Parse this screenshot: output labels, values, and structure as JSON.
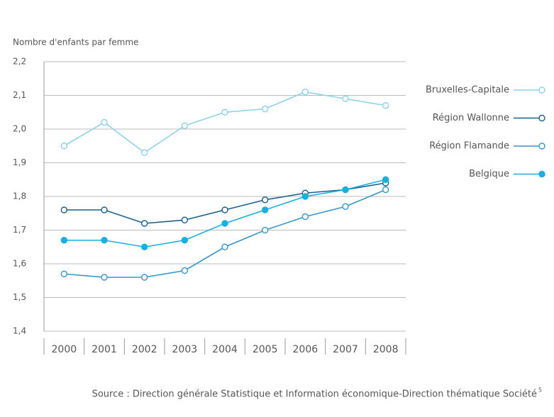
{
  "chart_data": {
    "type": "line",
    "ylabel": "Nombre d'enfants par femme",
    "categories": [
      "2000",
      "2001",
      "2002",
      "2003",
      "2004",
      "2005",
      "2006",
      "2007",
      "2008"
    ],
    "series": [
      {
        "name": "Bruxelles-Capitale",
        "color": "#8ed2ea",
        "marker": "open",
        "values": [
          1.95,
          2.02,
          1.93,
          2.01,
          2.05,
          2.06,
          2.11,
          2.09,
          2.07
        ]
      },
      {
        "name": "Région Wallonne",
        "color": "#1b5f8e",
        "marker": "open",
        "values": [
          1.76,
          1.76,
          1.72,
          1.73,
          1.76,
          1.79,
          1.81,
          1.82,
          1.84
        ]
      },
      {
        "name": "Région Flamande",
        "color": "#3598c8",
        "marker": "open",
        "values": [
          1.57,
          1.56,
          1.56,
          1.58,
          1.65,
          1.7,
          1.74,
          1.77,
          1.82
        ]
      },
      {
        "name": "Belgique",
        "color": "#17b0e0",
        "marker": "filled",
        "values": [
          1.67,
          1.67,
          1.65,
          1.67,
          1.72,
          1.76,
          1.8,
          1.82,
          1.85
        ]
      }
    ],
    "ylim": [
      1.4,
      2.2
    ],
    "yticks": [
      {
        "value": 1.4,
        "label": "1,4"
      },
      {
        "value": 1.5,
        "label": "1,5"
      },
      {
        "value": 1.6,
        "label": "1,6"
      },
      {
        "value": 1.7,
        "label": "1,7"
      },
      {
        "value": 1.8,
        "label": "1,8"
      },
      {
        "value": 1.9,
        "label": "1,9"
      },
      {
        "value": 2.0,
        "label": "2,0"
      },
      {
        "value": 2.1,
        "label": "2,1"
      },
      {
        "value": 2.2,
        "label": "2,2"
      }
    ],
    "grid": true,
    "legend": "right",
    "source": "Source : Direction générale Statistique et Information économique-Direction thématique Société",
    "source_note": "5"
  }
}
